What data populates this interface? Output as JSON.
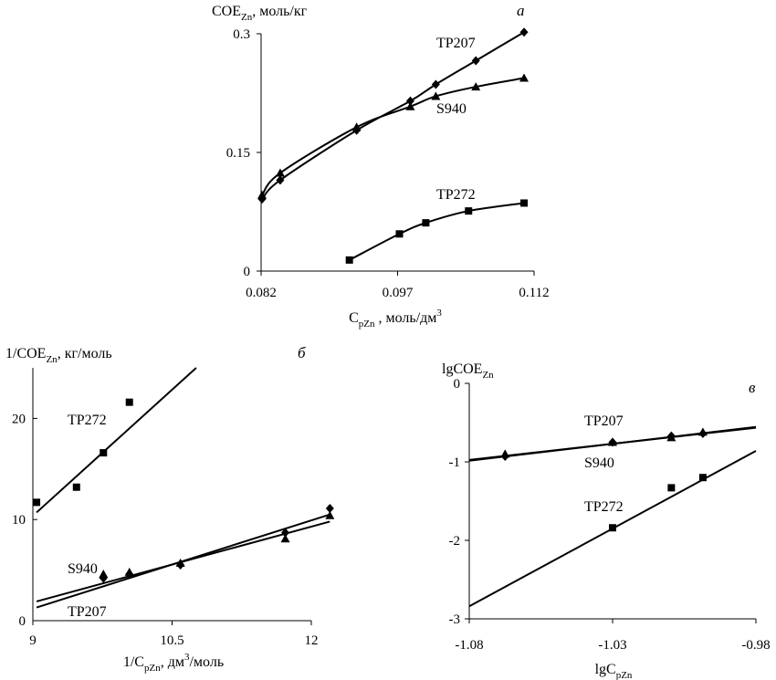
{
  "colors": {
    "ink": "#000000",
    "background": "#ffffff"
  },
  "chart_data": [
    {
      "id": "a",
      "type": "line",
      "panel_label": "а",
      "ylabel": {
        "base": "COE",
        "sub": "Zn",
        "rest": ", моль/кг"
      },
      "xlabel": {
        "base": "C",
        "sub": "pZn",
        "rest": " , моль/дм",
        "sup": "3"
      },
      "xlim": [
        0.082,
        0.112
      ],
      "ylim": [
        0,
        0.3
      ],
      "xticks": [
        0.082,
        0.097,
        0.112
      ],
      "xtick_labels": [
        "0.082",
        "0.097",
        "0.112"
      ],
      "yticks": [
        0,
        0.15,
        0.3
      ],
      "ytick_labels": [
        "0",
        "0.15",
        "0.3"
      ],
      "grid": false,
      "series": [
        {
          "name": "TP207",
          "marker": "diamond",
          "x": [
            0.0821,
            0.0841,
            0.0925,
            0.0984,
            0.1012,
            0.1056,
            0.1109
          ],
          "y": [
            0.091,
            0.115,
            0.178,
            0.215,
            0.236,
            0.266,
            0.302
          ]
        },
        {
          "name": "S940",
          "marker": "triangle",
          "x": [
            0.0821,
            0.0841,
            0.0925,
            0.0984,
            0.1012,
            0.1056,
            0.1109
          ],
          "y": [
            0.096,
            0.124,
            0.182,
            0.208,
            0.221,
            0.233,
            0.244
          ]
        },
        {
          "name": "TP272",
          "marker": "square",
          "x": [
            0.0917,
            0.0972,
            0.1001,
            0.1048,
            0.1109
          ],
          "y": [
            0.014,
            0.047,
            0.061,
            0.076,
            0.086
          ]
        }
      ]
    },
    {
      "id": "b",
      "type": "scatter",
      "panel_label": "б",
      "ylabel": {
        "base": "1/COE",
        "sub": "Zn",
        "rest": ", кг/моль"
      },
      "xlabel": {
        "base": "1/C",
        "sub": "pZn",
        "rest": ", дм",
        "sup": "3",
        "rest2": "/моль"
      },
      "xlim": [
        9,
        12
      ],
      "ylim": [
        0,
        25
      ],
      "xticks": [
        9,
        10.5,
        12
      ],
      "xtick_labels": [
        "9",
        "10.5",
        "12"
      ],
      "yticks": [
        0,
        10,
        20
      ],
      "ytick_labels": [
        "0",
        "10",
        "20"
      ],
      "grid": false,
      "series": [
        {
          "name": "TP272",
          "marker": "square",
          "x": [
            9.04,
            9.47,
            9.76,
            10.04
          ],
          "y": [
            11.7,
            13.2,
            16.6,
            21.6
          ],
          "fit": {
            "x": [
              9.04,
              10.76
            ],
            "y": [
              10.7,
              25.0
            ]
          }
        },
        {
          "name": "S940",
          "marker": "triangle",
          "x": [
            9.76,
            10.04,
            10.59,
            11.72,
            12.2
          ],
          "y": [
            4.6,
            4.8,
            5.7,
            8.1,
            10.4
          ],
          "fit": {
            "x": [
              9.04,
              12.2
            ],
            "y": [
              1.9,
              9.8
            ]
          }
        },
        {
          "name": "TP207",
          "marker": "diamond",
          "x": [
            9.76,
            10.04,
            10.59,
            11.72,
            12.2
          ],
          "y": [
            4.2,
            4.6,
            5.5,
            8.7,
            11.1
          ],
          "fit": {
            "x": [
              9.04,
              12.2
            ],
            "y": [
              1.3,
              10.5
            ]
          }
        }
      ]
    },
    {
      "id": "c",
      "type": "scatter",
      "panel_label": "в",
      "ylabel": {
        "base": "lgCOE",
        "sub": "Zn",
        "rest": ""
      },
      "xlabel": {
        "base": "lgC",
        "sub": "pZn",
        "rest": ""
      },
      "xlim": [
        -1.08,
        -0.98
      ],
      "ylim": [
        -3,
        0
      ],
      "xticks": [
        -1.08,
        -1.03,
        -0.98
      ],
      "xtick_labels": [
        "-1.08",
        "-1.03",
        "-0.98"
      ],
      "yticks": [
        -3,
        -2,
        -1,
        0
      ],
      "ytick_labels": [
        "-3",
        "-2",
        "-1",
        "0"
      ],
      "grid": false,
      "series": [
        {
          "name": "TP207",
          "marker": "diamond",
          "x": [
            -1.0675,
            -1.03,
            -1.0095,
            -0.9985
          ],
          "y": [
            -0.93,
            -0.75,
            -0.67,
            -0.64
          ],
          "fit": {
            "x": [
              -1.08,
              -0.98
            ],
            "y": [
              -0.985,
              -0.555
            ]
          }
        },
        {
          "name": "S940",
          "marker": "triangle",
          "x": [
            -1.0675,
            -1.03,
            -1.0095,
            -0.9985
          ],
          "y": [
            -0.9,
            -0.75,
            -0.69,
            -0.62
          ],
          "fit": {
            "x": [
              -1.08,
              -0.98
            ],
            "y": [
              -0.975,
              -0.565
            ]
          }
        },
        {
          "name": "TP272",
          "marker": "square",
          "x": [
            -1.03,
            -1.0095,
            -0.9985
          ],
          "y": [
            -1.84,
            -1.33,
            -1.2
          ],
          "fit": {
            "x": [
              -1.08,
              -0.98
            ],
            "y": [
              -2.84,
              -0.86
            ]
          }
        }
      ]
    }
  ]
}
